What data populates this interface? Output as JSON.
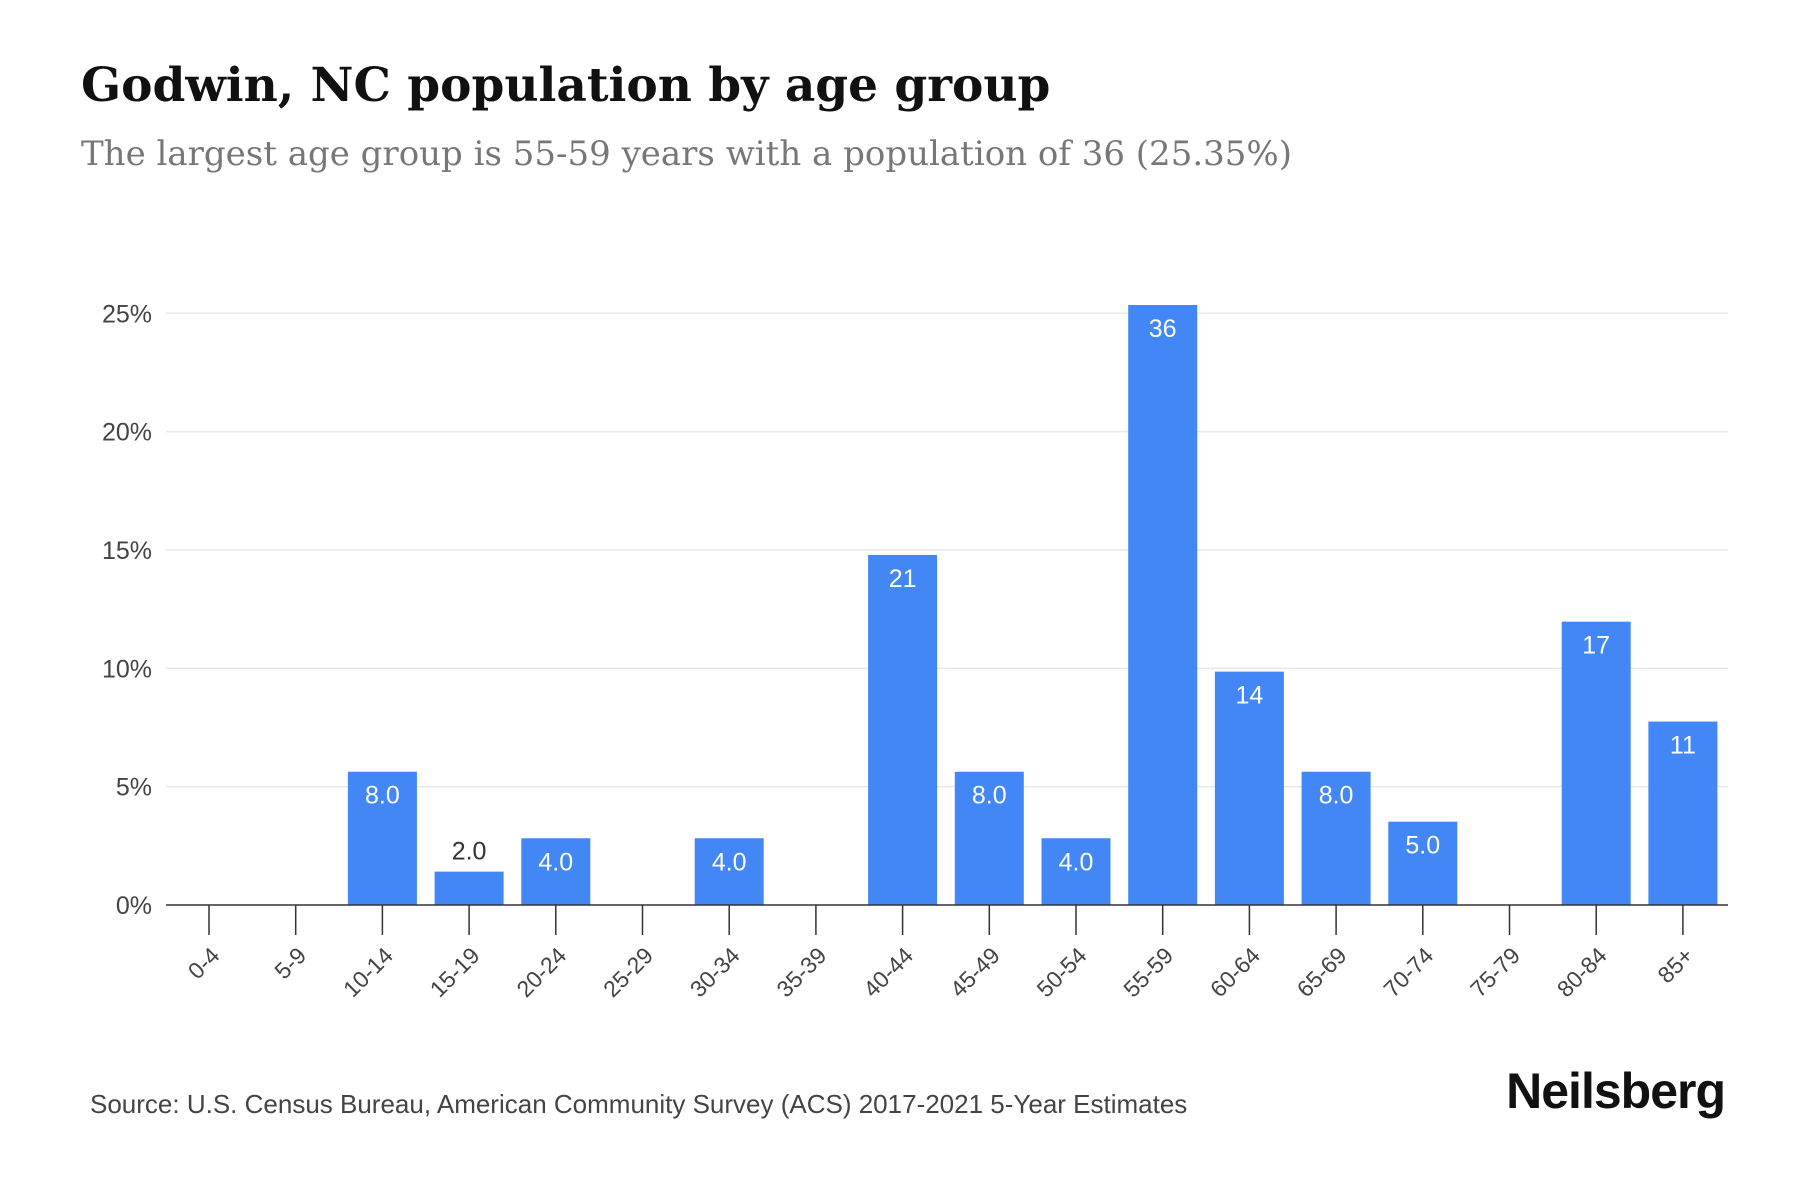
{
  "title": "Godwin, NC population by age group",
  "subtitle": "The largest age group is 55-59 years with a population of 36 (25.35%)",
  "source": "Source: U.S. Census Bureau, American Community Survey (ACS) 2017-2021 5-Year Estimates",
  "brand": "Neilsberg",
  "colors": {
    "bar": "#4287f5",
    "grid": "#e8e8e8",
    "axis": "#333333",
    "tick_text": "#444444",
    "label_inside": "#ffffff",
    "label_outside": "#333333"
  },
  "chart_data": {
    "type": "bar",
    "categories": [
      "0-4",
      "5-9",
      "10-14",
      "15-19",
      "20-24",
      "25-29",
      "30-34",
      "35-39",
      "40-44",
      "45-49",
      "50-54",
      "55-59",
      "60-64",
      "65-69",
      "70-74",
      "75-79",
      "80-84",
      "85+"
    ],
    "series": [
      {
        "values_percent": [
          0,
          0,
          5.63,
          1.41,
          2.82,
          0,
          2.82,
          0,
          14.79,
          5.63,
          2.82,
          25.35,
          9.86,
          5.63,
          3.52,
          0,
          11.97,
          7.75
        ],
        "data_labels": [
          "",
          "",
          "8.0",
          "2.0",
          "4.0",
          "",
          "4.0",
          "",
          "21",
          "8.0",
          "4.0",
          "36",
          "14",
          "8.0",
          "5.0",
          "",
          "17",
          "11"
        ]
      }
    ],
    "ylim": [
      0,
      25.35
    ],
    "yticks": [
      0,
      5,
      10,
      15,
      20,
      25
    ],
    "ytick_labels": [
      "0%",
      "5%",
      "10%",
      "15%",
      "20%",
      "25%"
    ],
    "xlabel": "",
    "ylabel": "",
    "grid": true,
    "legend": "none"
  }
}
